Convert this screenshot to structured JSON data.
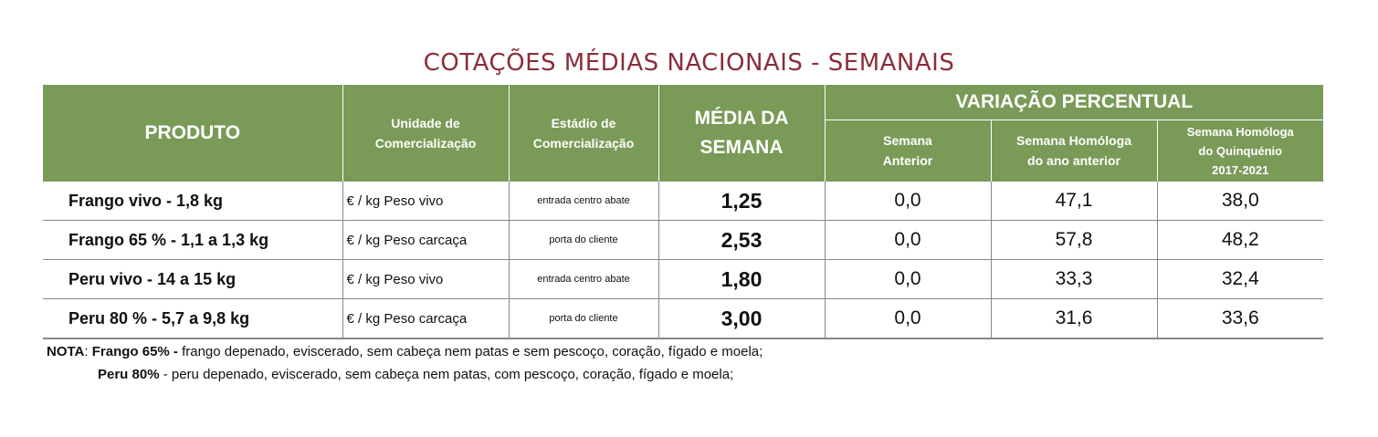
{
  "title": "COTAÇÕES MÉDIAS NACIONAIS - SEMANAIS",
  "colors": {
    "header_bg": "#7A9A58",
    "title": "#8B2D3A"
  },
  "headers": {
    "produto": "PRODUTO",
    "unidade_line1": "Unidade de",
    "unidade_line2": "Comercialização",
    "estadio_line1": "Estádio de",
    "estadio_line2": "Comercialização",
    "media_line1": "MÉDIA DA",
    "media_line2": "SEMANA",
    "variacao": "VARIAÇÃO PERCENTUAL",
    "semana_anterior_line1": "Semana",
    "semana_anterior_line2": "Anterior",
    "homologa_ano_line1": "Semana Homóloga",
    "homologa_ano_line2": "do ano anterior",
    "homologa_quinq_line1": "Semana Homóloga",
    "homologa_quinq_line2": "do Quinquénio",
    "homologa_quinq_line3": "2017-2021"
  },
  "rows": [
    {
      "produto": "Frango vivo - 1,8 kg",
      "unidade": "€ / kg Peso vivo",
      "estadio": "entrada centro abate",
      "media": "1,25",
      "semana_anterior": "0,0",
      "homologa_ano": "47,1",
      "homologa_quinquenio": "38,0"
    },
    {
      "produto": "Frango 65 % - 1,1 a 1,3 kg",
      "unidade": "€ / kg Peso carcaça",
      "estadio": "porta do cliente",
      "media": "2,53",
      "semana_anterior": "0,0",
      "homologa_ano": "57,8",
      "homologa_quinquenio": "48,2"
    },
    {
      "produto": "Peru vivo - 14 a 15 kg",
      "unidade": "€ / kg Peso vivo",
      "estadio": "entrada centro abate",
      "media": "1,80",
      "semana_anterior": "0,0",
      "homologa_ano": "33,3",
      "homologa_quinquenio": "32,4"
    },
    {
      "produto": "Peru 80 % - 5,7 a 9,8 kg",
      "unidade": "€ / kg Peso carcaça",
      "estadio": "porta do cliente",
      "media": "3,00",
      "semana_anterior": "0,0",
      "homologa_ano": "31,6",
      "homologa_quinquenio": "33,6"
    }
  ],
  "notes": {
    "prefix": "NOTA",
    "colon": ": ",
    "frango_label": "Frango 65% -",
    "frango_text": " frango depenado, eviscerado, sem cabeça nem patas e sem pescoço, coração, fígado e moela;",
    "peru_label": "Peru 80%",
    "peru_text": " - peru depenado, eviscerado, sem cabeça nem patas, com pescoço, coração, fígado e moela;"
  },
  "chart_data": {
    "type": "table",
    "title": "COTAÇÕES MÉDIAS NACIONAIS - SEMANAIS",
    "columns": [
      "PRODUTO",
      "Unidade de Comercialização",
      "Estádio de Comercialização",
      "MÉDIA DA SEMANA",
      "Semana Anterior",
      "Semana Homóloga do ano anterior",
      "Semana Homóloga do Quinquénio 2017-2021"
    ],
    "rows": [
      [
        "Frango vivo - 1,8 kg",
        "€ / kg Peso vivo",
        "entrada centro abate",
        1.25,
        0.0,
        47.1,
        38.0
      ],
      [
        "Frango 65 % - 1,1 a 1,3 kg",
        "€ / kg Peso carcaça",
        "porta do cliente",
        2.53,
        0.0,
        57.8,
        48.2
      ],
      [
        "Peru vivo - 14 a 15 kg",
        "€ / kg Peso vivo",
        "entrada centro abate",
        1.8,
        0.0,
        33.3,
        32.4
      ],
      [
        "Peru 80 % - 5,7 a 9,8 kg",
        "€ / kg Peso carcaça",
        "porta do cliente",
        3.0,
        0.0,
        31.6,
        33.6
      ]
    ]
  }
}
